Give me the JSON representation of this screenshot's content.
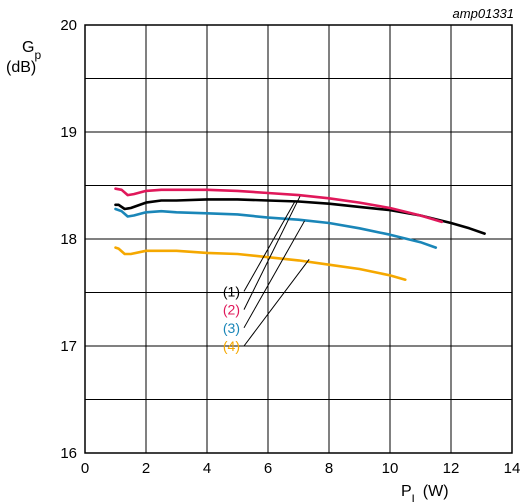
{
  "figure_id": "amp01331",
  "chart_data": {
    "type": "line",
    "xlabel_main": "P",
    "xlabel_sub": "L",
    "xlabel_unit": " (W)",
    "ylabel_main": "G",
    "ylabel_sub": "p",
    "ylabel_unit": "(dB)",
    "xlim": [
      0,
      14
    ],
    "ylim": [
      16,
      20
    ],
    "xticks": [
      0,
      2,
      4,
      6,
      8,
      10,
      12,
      14
    ],
    "yticks": [
      16,
      17,
      18,
      19,
      20
    ],
    "x_grid_step": 2,
    "y_grid_step": 0.5,
    "grid": true,
    "series": [
      {
        "name": "(1)",
        "color": "#000000",
        "points": [
          [
            1.0,
            18.32
          ],
          [
            1.1,
            18.32
          ],
          [
            1.3,
            18.28
          ],
          [
            1.5,
            18.29
          ],
          [
            2.0,
            18.34
          ],
          [
            2.5,
            18.36
          ],
          [
            3.0,
            18.36
          ],
          [
            4.0,
            18.37
          ],
          [
            5.0,
            18.37
          ],
          [
            6.0,
            18.36
          ],
          [
            7.0,
            18.35
          ],
          [
            8.0,
            18.33
          ],
          [
            9.0,
            18.3
          ],
          [
            10.0,
            18.27
          ],
          [
            11.0,
            18.22
          ],
          [
            12.0,
            18.15
          ],
          [
            12.6,
            18.1
          ],
          [
            13.1,
            18.05
          ]
        ]
      },
      {
        "name": "(2)",
        "color": "#e0185a",
        "points": [
          [
            1.0,
            18.47
          ],
          [
            1.2,
            18.46
          ],
          [
            1.4,
            18.41
          ],
          [
            1.6,
            18.42
          ],
          [
            2.0,
            18.45
          ],
          [
            2.5,
            18.46
          ],
          [
            3.0,
            18.46
          ],
          [
            4.0,
            18.46
          ],
          [
            5.0,
            18.45
          ],
          [
            6.0,
            18.43
          ],
          [
            7.0,
            18.41
          ],
          [
            8.0,
            18.38
          ],
          [
            9.0,
            18.34
          ],
          [
            10.0,
            18.29
          ],
          [
            11.0,
            18.22
          ],
          [
            11.7,
            18.16
          ]
        ]
      },
      {
        "name": "(3)",
        "color": "#1a86b8",
        "points": [
          [
            1.0,
            18.28
          ],
          [
            1.2,
            18.26
          ],
          [
            1.4,
            18.21
          ],
          [
            1.6,
            18.22
          ],
          [
            2.0,
            18.25
          ],
          [
            2.5,
            18.26
          ],
          [
            3.0,
            18.25
          ],
          [
            4.0,
            18.24
          ],
          [
            5.0,
            18.23
          ],
          [
            6.0,
            18.2
          ],
          [
            7.0,
            18.18
          ],
          [
            8.0,
            18.15
          ],
          [
            9.0,
            18.1
          ],
          [
            10.0,
            18.04
          ],
          [
            11.0,
            17.97
          ],
          [
            11.5,
            17.92
          ]
        ]
      },
      {
        "name": "(4)",
        "color": "#f5a800",
        "points": [
          [
            1.0,
            17.92
          ],
          [
            1.1,
            17.91
          ],
          [
            1.3,
            17.86
          ],
          [
            1.5,
            17.86
          ],
          [
            2.0,
            17.89
          ],
          [
            2.5,
            17.89
          ],
          [
            3.0,
            17.89
          ],
          [
            4.0,
            17.87
          ],
          [
            5.0,
            17.86
          ],
          [
            6.0,
            17.83
          ],
          [
            7.0,
            17.8
          ],
          [
            8.0,
            17.76
          ],
          [
            9.0,
            17.72
          ],
          [
            10.0,
            17.66
          ],
          [
            10.5,
            17.62
          ]
        ]
      }
    ],
    "callouts": [
      {
        "label": "(1)",
        "color": "#000000",
        "label_y": 17.51,
        "target": [
          6.9,
          18.36
        ]
      },
      {
        "label": "(2)",
        "color": "#e0185a",
        "label_y": 17.34,
        "target": [
          7.05,
          18.4
        ]
      },
      {
        "label": "(3)",
        "color": "#1a86b8",
        "label_y": 17.17,
        "target": [
          7.2,
          18.17
        ]
      },
      {
        "label": "(4)",
        "color": "#f5a800",
        "label_y": 17.0,
        "target": [
          7.35,
          17.81
        ]
      }
    ]
  }
}
